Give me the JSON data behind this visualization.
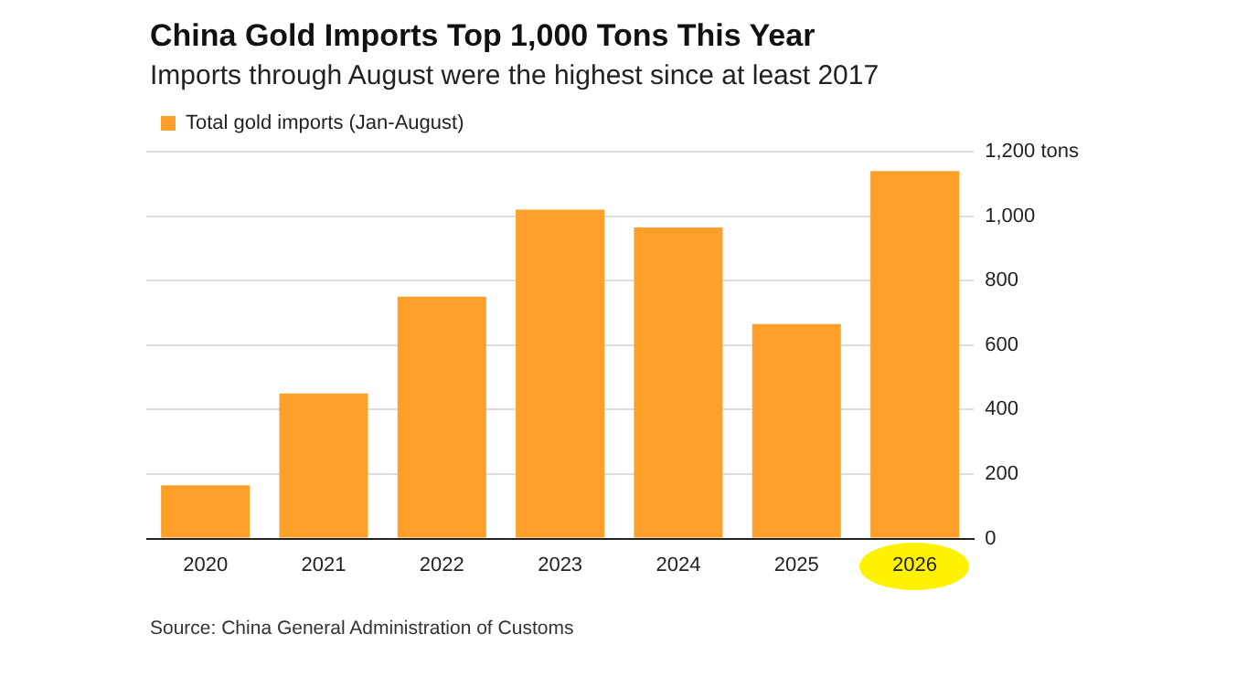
{
  "chart_data": {
    "type": "bar",
    "title": "China Gold Imports Top 1,000 Tons This Year",
    "subtitle": "Imports through August were the highest since at least 2017",
    "categories": [
      "2020",
      "2021",
      "2022",
      "2023",
      "2024",
      "2025",
      "2026"
    ],
    "series": [
      {
        "name": "Total gold imports (Jan-August)",
        "color": "#fd9f29",
        "values": [
          165,
          450,
          750,
          1020,
          965,
          665,
          1140
        ]
      }
    ],
    "ylim": [
      0,
      1200
    ],
    "yticks": [
      0,
      200,
      400,
      600,
      800,
      {
        "value": 1000,
        "label": "1,000"
      },
      {
        "value": 1200,
        "label": "1,200 tons"
      }
    ],
    "grid": "y",
    "legend": "top left",
    "annotations": [
      "Source: China General Administration of Customs"
    ]
  }
}
